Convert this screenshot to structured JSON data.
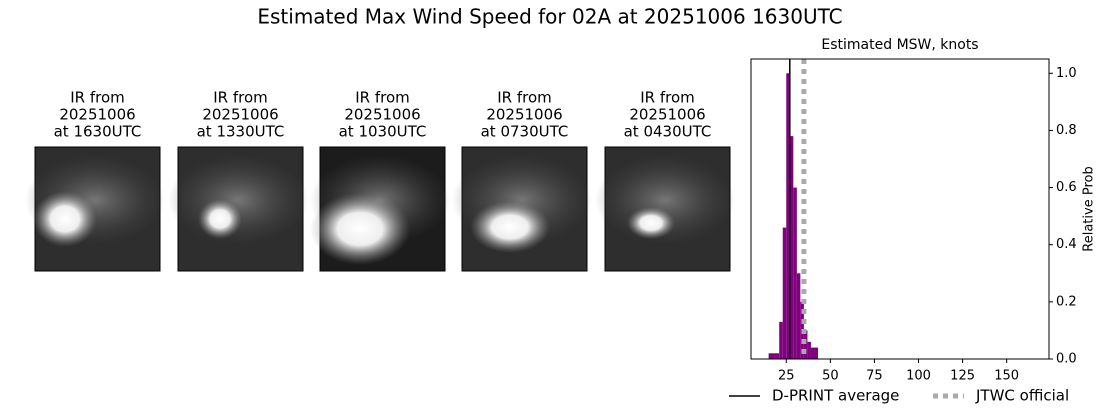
{
  "title": "Estimated Max Wind Speed for 02A at 20251006 1630UTC",
  "panels": [
    {
      "lines": [
        "IR from",
        "20251006",
        "at 1630UTC"
      ]
    },
    {
      "lines": [
        "IR from",
        "20251006",
        "at 1330UTC"
      ]
    },
    {
      "lines": [
        "IR from",
        "20251006",
        "at 1030UTC"
      ]
    },
    {
      "lines": [
        "IR from",
        "20251006",
        "at 0730UTC"
      ]
    },
    {
      "lines": [
        "IR from",
        "20251006",
        "at 0430UTC"
      ]
    }
  ],
  "chart_data": {
    "type": "histogram",
    "title": "Estimated MSW, knots",
    "y_label": "Relative Prob",
    "bins": [
      15,
      21,
      23,
      25,
      27,
      29,
      31,
      33,
      35,
      37,
      39,
      43
    ],
    "values": [
      0.02,
      0.13,
      0.46,
      1.0,
      0.78,
      0.6,
      0.3,
      0.2,
      0.1,
      0.06,
      0.04
    ],
    "color": "#800080",
    "xlim": [
      5,
      174
    ],
    "xticks": [
      25,
      50,
      75,
      100,
      125,
      150
    ],
    "ylim": [
      0,
      1.05
    ],
    "yticks": [
      {
        "value": 0,
        "label": "0.0"
      },
      0.2,
      0.4,
      0.6,
      0.8,
      {
        "value": 1,
        "label": "1.0"
      }
    ],
    "y_axis_side": "right",
    "grid": false,
    "legend": "below",
    "lines": [
      {
        "name": "D-PRINT average",
        "value": 27,
        "color": "#000000",
        "dotted": false
      },
      {
        "name": "JTWC official",
        "value": 35,
        "color": "#aaaaaa",
        "dotted": true
      }
    ]
  }
}
